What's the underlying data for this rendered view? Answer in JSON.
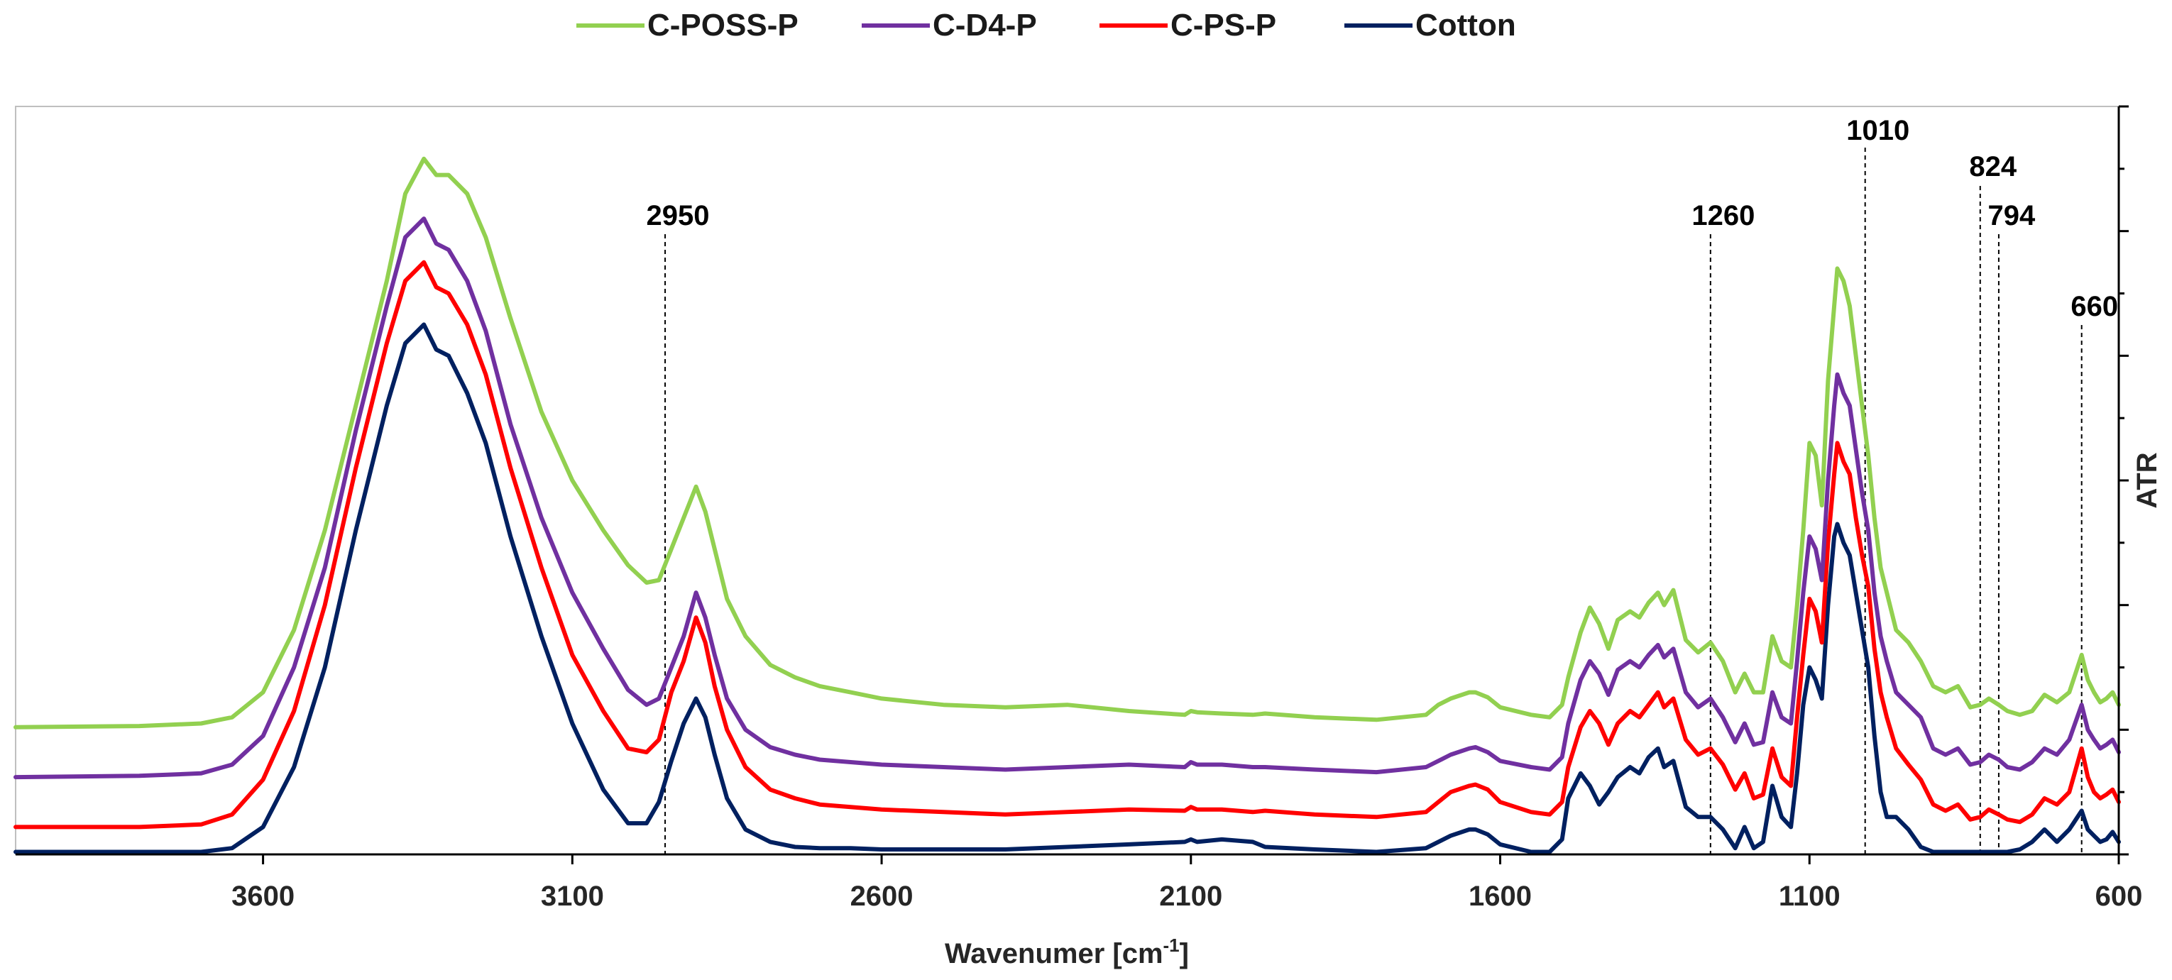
{
  "chart_data": {
    "type": "line",
    "title": "",
    "xlabel": "Wavenumer [cm",
    "xlabel_superscript": "-1",
    "xlabel_suffix": "]",
    "ylabel": "ATR",
    "xlim": [
      4000,
      600
    ],
    "x_reversed": true,
    "ylim": [
      0,
      6
    ],
    "x_ticks": [
      3600,
      3100,
      2600,
      2100,
      1600,
      1100,
      600
    ],
    "y_tick_count": 6,
    "y_ticks_labeled": false,
    "grid": false,
    "legend_position": "top-center",
    "annotations": [
      {
        "label": "2950",
        "x": 2950
      },
      {
        "label": "1260",
        "x": 1260
      },
      {
        "label": "1010",
        "x": 1010
      },
      {
        "label": "824",
        "x": 824
      },
      {
        "label": "794",
        "x": 794
      },
      {
        "label": "660",
        "x": 660
      }
    ],
    "series": [
      {
        "name": "C-POSS-P",
        "color": "#92d050",
        "x": [
          4000,
          3800,
          3700,
          3650,
          3600,
          3550,
          3500,
          3450,
          3400,
          3370,
          3340,
          3320,
          3300,
          3270,
          3240,
          3200,
          3150,
          3100,
          3050,
          3010,
          2980,
          2960,
          2940,
          2920,
          2900,
          2885,
          2870,
          2850,
          2820,
          2780,
          2740,
          2700,
          2650,
          2600,
          2500,
          2400,
          2300,
          2200,
          2110,
          2100,
          2090,
          2050,
          2000,
          1980,
          1900,
          1800,
          1720,
          1700,
          1680,
          1650,
          1640,
          1620,
          1600,
          1550,
          1520,
          1500,
          1490,
          1470,
          1455,
          1440,
          1425,
          1410,
          1390,
          1375,
          1360,
          1345,
          1335,
          1320,
          1300,
          1280,
          1260,
          1240,
          1220,
          1205,
          1190,
          1175,
          1160,
          1145,
          1130,
          1120,
          1110,
          1100,
          1090,
          1080,
          1070,
          1060,
          1055,
          1045,
          1035,
          1025,
          1015,
          1005,
          995,
          985,
          975,
          960,
          940,
          920,
          900,
          880,
          860,
          840,
          824,
          810,
          794,
          780,
          760,
          740,
          720,
          700,
          680,
          660,
          650,
          640,
          630,
          620,
          610,
          600
        ],
        "y": [
          1.02,
          1.03,
          1.05,
          1.1,
          1.3,
          1.8,
          2.6,
          3.6,
          4.6,
          5.3,
          5.58,
          5.45,
          5.45,
          5.3,
          4.95,
          4.3,
          3.55,
          3.0,
          2.6,
          2.32,
          2.18,
          2.2,
          2.45,
          2.7,
          2.95,
          2.75,
          2.45,
          2.05,
          1.75,
          1.52,
          1.42,
          1.35,
          1.3,
          1.25,
          1.2,
          1.18,
          1.2,
          1.15,
          1.12,
          1.15,
          1.14,
          1.13,
          1.12,
          1.13,
          1.1,
          1.08,
          1.12,
          1.2,
          1.25,
          1.3,
          1.3,
          1.26,
          1.18,
          1.12,
          1.1,
          1.2,
          1.42,
          1.78,
          1.98,
          1.85,
          1.65,
          1.88,
          1.95,
          1.9,
          2.02,
          2.1,
          2.0,
          2.12,
          1.72,
          1.62,
          1.7,
          1.55,
          1.3,
          1.45,
          1.3,
          1.3,
          1.75,
          1.55,
          1.5,
          2.0,
          2.6,
          3.3,
          3.2,
          2.8,
          3.8,
          4.4,
          4.7,
          4.6,
          4.4,
          4.0,
          3.6,
          3.2,
          2.7,
          2.3,
          2.1,
          1.8,
          1.7,
          1.55,
          1.35,
          1.3,
          1.35,
          1.18,
          1.2,
          1.25,
          1.2,
          1.15,
          1.12,
          1.15,
          1.28,
          1.22,
          1.3,
          1.6,
          1.4,
          1.3,
          1.22,
          1.25,
          1.3,
          1.2
        ]
      },
      {
        "name": "C-D4-P",
        "color": "#7030a0",
        "x": [
          4000,
          3800,
          3700,
          3650,
          3600,
          3550,
          3500,
          3450,
          3400,
          3370,
          3340,
          3320,
          3300,
          3270,
          3240,
          3200,
          3150,
          3100,
          3050,
          3010,
          2980,
          2960,
          2940,
          2920,
          2900,
          2885,
          2870,
          2850,
          2820,
          2780,
          2740,
          2700,
          2650,
          2600,
          2500,
          2400,
          2300,
          2200,
          2110,
          2100,
          2090,
          2050,
          2000,
          1980,
          1900,
          1800,
          1720,
          1700,
          1680,
          1650,
          1640,
          1620,
          1600,
          1550,
          1520,
          1500,
          1490,
          1470,
          1455,
          1440,
          1425,
          1410,
          1390,
          1375,
          1360,
          1345,
          1335,
          1320,
          1300,
          1280,
          1260,
          1240,
          1220,
          1205,
          1190,
          1175,
          1160,
          1145,
          1130,
          1120,
          1110,
          1100,
          1090,
          1080,
          1070,
          1060,
          1055,
          1045,
          1035,
          1025,
          1015,
          1005,
          995,
          985,
          975,
          960,
          940,
          920,
          900,
          880,
          860,
          840,
          824,
          810,
          794,
          780,
          760,
          740,
          720,
          700,
          680,
          660,
          650,
          640,
          630,
          620,
          610,
          600
        ],
        "y": [
          0.62,
          0.63,
          0.65,
          0.72,
          0.95,
          1.5,
          2.3,
          3.4,
          4.4,
          4.95,
          5.1,
          4.9,
          4.85,
          4.6,
          4.2,
          3.45,
          2.7,
          2.1,
          1.65,
          1.32,
          1.2,
          1.25,
          1.5,
          1.75,
          2.1,
          1.9,
          1.6,
          1.25,
          1.0,
          0.86,
          0.8,
          0.76,
          0.74,
          0.72,
          0.7,
          0.68,
          0.7,
          0.72,
          0.7,
          0.74,
          0.72,
          0.72,
          0.7,
          0.7,
          0.68,
          0.66,
          0.7,
          0.75,
          0.8,
          0.85,
          0.86,
          0.82,
          0.75,
          0.7,
          0.68,
          0.78,
          1.05,
          1.4,
          1.55,
          1.45,
          1.28,
          1.48,
          1.55,
          1.5,
          1.6,
          1.68,
          1.58,
          1.65,
          1.3,
          1.18,
          1.25,
          1.1,
          0.9,
          1.05,
          0.88,
          0.9,
          1.3,
          1.1,
          1.05,
          1.55,
          2.1,
          2.55,
          2.45,
          2.2,
          3.0,
          3.6,
          3.85,
          3.7,
          3.6,
          3.25,
          2.9,
          2.6,
          2.1,
          1.75,
          1.55,
          1.3,
          1.2,
          1.1,
          0.85,
          0.8,
          0.85,
          0.72,
          0.74,
          0.8,
          0.76,
          0.7,
          0.68,
          0.74,
          0.85,
          0.8,
          0.92,
          1.2,
          1.0,
          0.92,
          0.85,
          0.88,
          0.92,
          0.82
        ]
      },
      {
        "name": "C-PS-P",
        "color": "#ff0000",
        "x": [
          4000,
          3800,
          3700,
          3650,
          3600,
          3550,
          3500,
          3450,
          3400,
          3370,
          3340,
          3320,
          3300,
          3270,
          3240,
          3200,
          3150,
          3100,
          3050,
          3010,
          2980,
          2960,
          2940,
          2920,
          2900,
          2885,
          2870,
          2850,
          2820,
          2780,
          2740,
          2700,
          2650,
          2600,
          2500,
          2400,
          2300,
          2200,
          2110,
          2100,
          2090,
          2050,
          2000,
          1980,
          1900,
          1800,
          1720,
          1700,
          1680,
          1650,
          1640,
          1620,
          1600,
          1550,
          1520,
          1500,
          1490,
          1470,
          1455,
          1440,
          1425,
          1410,
          1390,
          1375,
          1360,
          1345,
          1335,
          1320,
          1300,
          1280,
          1260,
          1240,
          1220,
          1205,
          1190,
          1175,
          1160,
          1145,
          1130,
          1120,
          1110,
          1100,
          1090,
          1080,
          1070,
          1060,
          1055,
          1045,
          1035,
          1025,
          1015,
          1005,
          995,
          985,
          975,
          960,
          940,
          920,
          900,
          880,
          860,
          840,
          824,
          810,
          794,
          780,
          760,
          740,
          720,
          700,
          680,
          660,
          650,
          640,
          630,
          620,
          610,
          600
        ],
        "y": [
          0.22,
          0.22,
          0.24,
          0.32,
          0.6,
          1.15,
          2.0,
          3.1,
          4.1,
          4.6,
          4.75,
          4.55,
          4.5,
          4.25,
          3.85,
          3.1,
          2.3,
          1.6,
          1.15,
          0.85,
          0.82,
          0.92,
          1.3,
          1.55,
          1.9,
          1.7,
          1.35,
          1.0,
          0.7,
          0.52,
          0.45,
          0.4,
          0.38,
          0.36,
          0.34,
          0.32,
          0.34,
          0.36,
          0.35,
          0.38,
          0.36,
          0.36,
          0.34,
          0.35,
          0.32,
          0.3,
          0.34,
          0.42,
          0.5,
          0.55,
          0.56,
          0.52,
          0.42,
          0.34,
          0.32,
          0.42,
          0.7,
          1.02,
          1.15,
          1.05,
          0.88,
          1.05,
          1.15,
          1.1,
          1.2,
          1.3,
          1.18,
          1.25,
          0.92,
          0.8,
          0.85,
          0.72,
          0.52,
          0.65,
          0.45,
          0.48,
          0.85,
          0.62,
          0.55,
          1.1,
          1.6,
          2.05,
          1.95,
          1.7,
          2.5,
          3.05,
          3.3,
          3.15,
          3.05,
          2.7,
          2.4,
          2.15,
          1.65,
          1.3,
          1.1,
          0.85,
          0.72,
          0.6,
          0.4,
          0.35,
          0.4,
          0.28,
          0.3,
          0.36,
          0.32,
          0.28,
          0.26,
          0.32,
          0.45,
          0.4,
          0.5,
          0.85,
          0.62,
          0.5,
          0.45,
          0.48,
          0.52,
          0.42
        ]
      },
      {
        "name": "Cotton",
        "color": "#002060",
        "x": [
          4000,
          3800,
          3700,
          3650,
          3600,
          3550,
          3500,
          3450,
          3400,
          3370,
          3340,
          3320,
          3300,
          3270,
          3240,
          3200,
          3150,
          3100,
          3050,
          3010,
          2980,
          2960,
          2940,
          2920,
          2900,
          2885,
          2870,
          2850,
          2820,
          2780,
          2740,
          2700,
          2650,
          2600,
          2500,
          2400,
          2300,
          2200,
          2110,
          2100,
          2090,
          2050,
          2000,
          1980,
          1900,
          1800,
          1720,
          1700,
          1680,
          1650,
          1640,
          1620,
          1600,
          1550,
          1520,
          1500,
          1490,
          1470,
          1455,
          1440,
          1425,
          1410,
          1390,
          1375,
          1360,
          1345,
          1335,
          1320,
          1300,
          1280,
          1260,
          1240,
          1220,
          1205,
          1190,
          1175,
          1160,
          1145,
          1130,
          1120,
          1110,
          1100,
          1090,
          1080,
          1070,
          1060,
          1055,
          1045,
          1035,
          1025,
          1015,
          1005,
          995,
          985,
          975,
          960,
          940,
          920,
          900,
          880,
          860,
          840,
          824,
          810,
          794,
          780,
          760,
          740,
          720,
          700,
          680,
          660,
          650,
          640,
          630,
          620,
          610,
          600
        ],
        "y": [
          0.02,
          0.02,
          0.02,
          0.05,
          0.22,
          0.7,
          1.5,
          2.6,
          3.6,
          4.1,
          4.25,
          4.05,
          4.0,
          3.7,
          3.3,
          2.55,
          1.75,
          1.05,
          0.52,
          0.25,
          0.25,
          0.42,
          0.75,
          1.05,
          1.25,
          1.1,
          0.8,
          0.45,
          0.2,
          0.1,
          0.06,
          0.05,
          0.05,
          0.04,
          0.04,
          0.04,
          0.06,
          0.08,
          0.1,
          0.12,
          0.1,
          0.12,
          0.1,
          0.06,
          0.04,
          0.02,
          0.05,
          0.1,
          0.15,
          0.2,
          0.2,
          0.16,
          0.08,
          0.02,
          0.02,
          0.12,
          0.45,
          0.65,
          0.55,
          0.4,
          0.5,
          0.62,
          0.7,
          0.65,
          0.78,
          0.85,
          0.7,
          0.75,
          0.38,
          0.3,
          0.3,
          0.2,
          0.05,
          0.22,
          0.05,
          0.1,
          0.55,
          0.3,
          0.22,
          0.65,
          1.2,
          1.5,
          1.4,
          1.25,
          2.0,
          2.55,
          2.65,
          2.5,
          2.4,
          2.1,
          1.8,
          1.5,
          0.95,
          0.5,
          0.3,
          0.3,
          0.2,
          0.06,
          0.02,
          0.02,
          0.02,
          0.02,
          0.02,
          0.02,
          0.02,
          0.02,
          0.04,
          0.1,
          0.2,
          0.1,
          0.2,
          0.35,
          0.2,
          0.15,
          0.1,
          0.12,
          0.18,
          0.1
        ]
      }
    ]
  }
}
